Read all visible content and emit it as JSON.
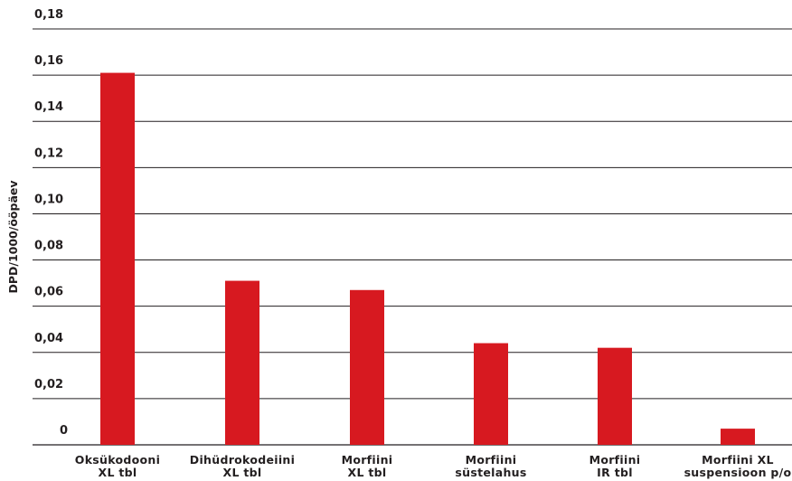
{
  "chart_data": {
    "type": "bar",
    "ylabel": "DPD/1000/ööpäev",
    "xlabel": "",
    "ylim": [
      0,
      0.18
    ],
    "ytick_labels": [
      "0",
      "0,02",
      "0,04",
      "0,06",
      "0,08",
      "0,10",
      "0,12",
      "0,14",
      "0,16",
      "0,18"
    ],
    "categories": [
      [
        "Oksükodooni",
        "XL tbl"
      ],
      [
        "Dihüdrokodeiini",
        "XL tbl"
      ],
      [
        "Morfiini",
        "XL tbl"
      ],
      [
        "Morfiini",
        "süstelahus"
      ],
      [
        "Morfiini",
        "IR tbl"
      ],
      [
        "Morfiini XL",
        "suspensioon p/o"
      ]
    ],
    "values": [
      0.161,
      0.071,
      0.067,
      0.044,
      0.042,
      0.007
    ],
    "bar_color": "#d71920",
    "grid": true
  }
}
